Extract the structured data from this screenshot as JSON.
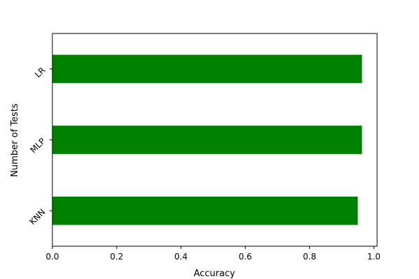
{
  "chart_data": {
    "type": "bar",
    "orientation": "horizontal",
    "categories": [
      "KNN",
      "MLP",
      "LR"
    ],
    "values": [
      0.95,
      0.963,
      0.963
    ],
    "bar_color": "#008000",
    "xlabel": "Accuracy",
    "ylabel": "Number of Tests",
    "xlim": [
      0,
      1.01
    ],
    "xticks": [
      0.0,
      0.2,
      0.4,
      0.6,
      0.8,
      1.0
    ],
    "xtick_labels": [
      "0.0",
      "0.2",
      "0.4",
      "0.6",
      "0.8",
      "1.0"
    ],
    "grid": false,
    "legend": "none"
  }
}
